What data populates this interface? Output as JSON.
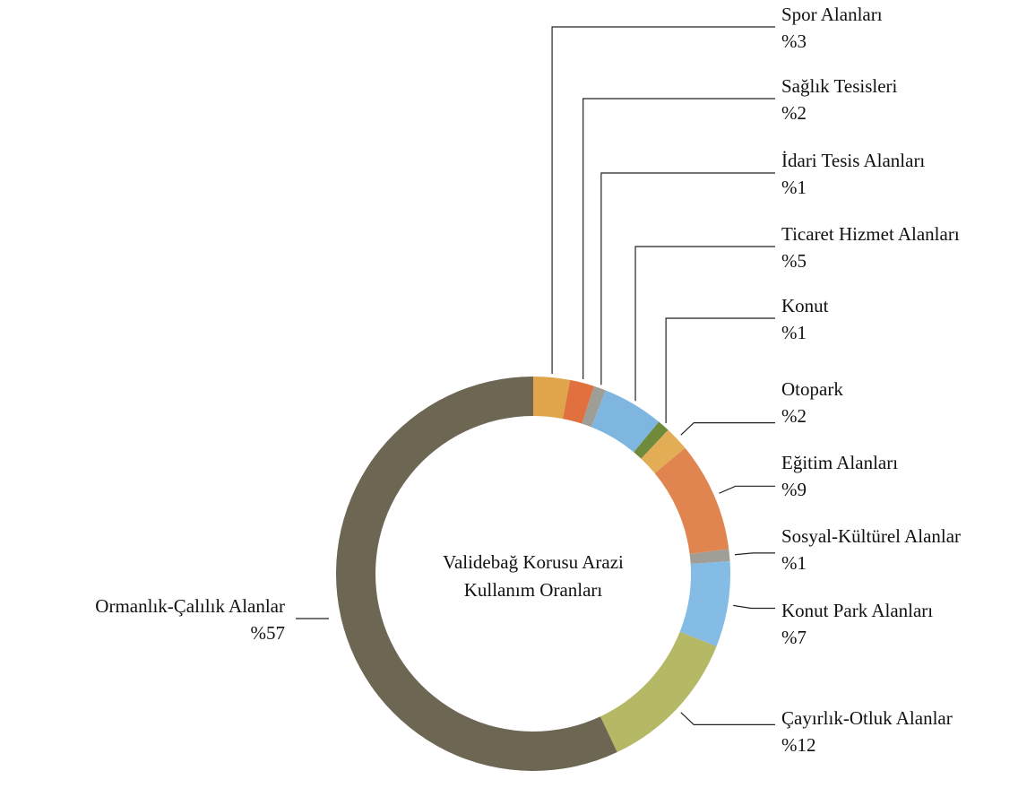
{
  "chart_data": {
    "type": "donut",
    "title": "Validebağ Korusu Arazi Kullanım Oranları",
    "categories": [
      "Spor Alanları",
      "Sağlık Tesisleri",
      "İdari Tesis Alanları",
      "Ticaret Hizmet Alanları",
      "Konut",
      "Otopark",
      "Eğitim Alanları",
      "Sosyal-Kültürel Alanlar",
      "Konut Park Alanları",
      "Çayırlık-Otluk Alanlar",
      "Ormanlık-Çalılık Alanlar"
    ],
    "values": [
      3,
      2,
      1,
      5,
      1,
      2,
      9,
      1,
      7,
      12,
      57
    ],
    "value_labels": [
      "%3",
      "%2",
      "%1",
      "%5",
      "%1",
      "%2",
      "%9",
      "%1",
      "%7",
      "%12",
      "%57"
    ],
    "colors": [
      "#e0a44a",
      "#e0703e",
      "#9e9e96",
      "#7fb6e0",
      "#6e8a3a",
      "#e3ad55",
      "#e08550",
      "#a09e96",
      "#84bce6",
      "#b5b865",
      "#6d6652"
    ]
  }
}
